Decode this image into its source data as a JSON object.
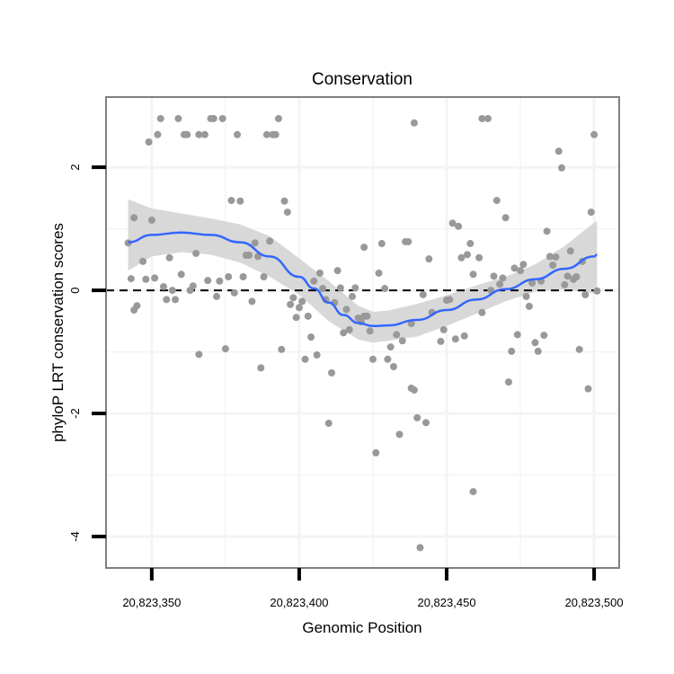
{
  "chart_data": {
    "type": "scatter",
    "title": "Conservation",
    "xlabel": "Genomic Position",
    "ylabel": "phyloP LRT conservation scores",
    "xlim": [
      20823334.5,
      20823508.5
    ],
    "ylim": [
      -4.51,
      3.14
    ],
    "xticks": [
      20823350,
      20823400,
      20823450,
      20823500
    ],
    "xtick_labels": [
      "20,823,350",
      "20,823,400",
      "20,823,450",
      "20,823,500"
    ],
    "yticks": [
      2,
      0,
      -2,
      -4
    ],
    "ytick_labels": [
      "2",
      "0",
      "-2",
      "-4"
    ],
    "grid": true,
    "reference_line": {
      "y": 0,
      "style": "dashed"
    },
    "colors": {
      "points": "#999999",
      "smooth": "#3366ff",
      "band": "#d6d6d6",
      "panel_border": "#808080",
      "grid": "#f4f4f4"
    },
    "points": [
      [
        20823353,
        2.79
      ],
      [
        20823359,
        2.79
      ],
      [
        20823370,
        2.79
      ],
      [
        20823371,
        2.79
      ],
      [
        20823374,
        2.79
      ],
      [
        20823393,
        2.79
      ],
      [
        20823349,
        2.41
      ],
      [
        20823352,
        2.53
      ],
      [
        20823361,
        2.53
      ],
      [
        20823362,
        2.53
      ],
      [
        20823366,
        2.53
      ],
      [
        20823368,
        2.53
      ],
      [
        20823379,
        2.53
      ],
      [
        20823389,
        2.53
      ],
      [
        20823391,
        2.53
      ],
      [
        20823392,
        2.53
      ],
      [
        20823377,
        1.46
      ],
      [
        20823380,
        1.45
      ],
      [
        20823395,
        1.45
      ],
      [
        20823396,
        1.27
      ],
      [
        20823344,
        1.18
      ],
      [
        20823350,
        1.14
      ],
      [
        20823342,
        0.77
      ],
      [
        20823385,
        0.77
      ],
      [
        20823390,
        0.8
      ],
      [
        20823422,
        0.7
      ],
      [
        20823347,
        0.47
      ],
      [
        20823356,
        0.53
      ],
      [
        20823365,
        0.6
      ],
      [
        20823382,
        0.57
      ],
      [
        20823383,
        0.57
      ],
      [
        20823386,
        0.55
      ],
      [
        20823343,
        0.19
      ],
      [
        20823348,
        0.18
      ],
      [
        20823351,
        0.2
      ],
      [
        20823360,
        0.26
      ],
      [
        20823369,
        0.16
      ],
      [
        20823373,
        0.15
      ],
      [
        20823376,
        0.22
      ],
      [
        20823381,
        0.22
      ],
      [
        20823388,
        0.22
      ],
      [
        20823407,
        0.28
      ],
      [
        20823413,
        0.32
      ],
      [
        20823405,
        0.15
      ],
      [
        20823408,
        0.03
      ],
      [
        20823414,
        0.04
      ],
      [
        20823419,
        0.04
      ],
      [
        20823354,
        0.06
      ],
      [
        20823357,
        0.0
      ],
      [
        20823364,
        0.07
      ],
      [
        20823363,
        0.0
      ],
      [
        20823355,
        -0.15
      ],
      [
        20823358,
        -0.15
      ],
      [
        20823345,
        -0.25
      ],
      [
        20823344,
        -0.32
      ],
      [
        20823372,
        -0.1
      ],
      [
        20823378,
        -0.04
      ],
      [
        20823384,
        -0.18
      ],
      [
        20823398,
        -0.12
      ],
      [
        20823397,
        -0.23
      ],
      [
        20823401,
        -0.18
      ],
      [
        20823400,
        -0.28
      ],
      [
        20823409,
        -0.15
      ],
      [
        20823412,
        -0.2
      ],
      [
        20823418,
        -0.1
      ],
      [
        20823416,
        -0.31
      ],
      [
        20823399,
        -0.44
      ],
      [
        20823403,
        -0.42
      ],
      [
        20823420,
        -0.45
      ],
      [
        20823422,
        -0.42
      ],
      [
        20823417,
        -0.64
      ],
      [
        20823415,
        -0.69
      ],
      [
        20823404,
        -0.76
      ],
      [
        20823366,
        -1.04
      ],
      [
        20823375,
        -0.95
      ],
      [
        20823394,
        -0.96
      ],
      [
        20823402,
        -1.12
      ],
      [
        20823406,
        -1.05
      ],
      [
        20823387,
        -1.26
      ],
      [
        20823411,
        -1.34
      ],
      [
        20823439,
        2.72
      ],
      [
        20823462,
        2.79
      ],
      [
        20823464,
        2.79
      ],
      [
        20823500,
        2.53
      ],
      [
        20823488,
        2.26
      ],
      [
        20823489,
        1.99
      ],
      [
        20823467,
        1.46
      ],
      [
        20823470,
        1.18
      ],
      [
        20823499,
        1.27
      ],
      [
        20823452,
        1.09
      ],
      [
        20823454,
        1.04
      ],
      [
        20823484,
        0.96
      ],
      [
        20823428,
        0.76
      ],
      [
        20823436,
        0.79
      ],
      [
        20823437,
        0.79
      ],
      [
        20823458,
        0.76
      ],
      [
        20823444,
        0.51
      ],
      [
        20823455,
        0.53
      ],
      [
        20823457,
        0.58
      ],
      [
        20823461,
        0.53
      ],
      [
        20823427,
        0.28
      ],
      [
        20823459,
        0.26
      ],
      [
        20823492,
        0.64
      ],
      [
        20823485,
        0.55
      ],
      [
        20823487,
        0.54
      ],
      [
        20823486,
        0.41
      ],
      [
        20823496,
        0.47
      ],
      [
        20823473,
        0.36
      ],
      [
        20823476,
        0.42
      ],
      [
        20823475,
        0.32
      ],
      [
        20823466,
        0.23
      ],
      [
        20823469,
        0.2
      ],
      [
        20823468,
        0.1
      ],
      [
        20823491,
        0.23
      ],
      [
        20823494,
        0.22
      ],
      [
        20823493,
        0.18
      ],
      [
        20823490,
        0.09
      ],
      [
        20823479,
        0.12
      ],
      [
        20823482,
        0.15
      ],
      [
        20823429,
        0.03
      ],
      [
        20823442,
        -0.07
      ],
      [
        20823465,
        0.0
      ],
      [
        20823477,
        -0.1
      ],
      [
        20823478,
        -0.26
      ],
      [
        20823497,
        -0.07
      ],
      [
        20823501,
        -0.01
      ],
      [
        20823450,
        -0.16
      ],
      [
        20823451,
        -0.15
      ],
      [
        20823423,
        -0.42
      ],
      [
        20823421,
        -0.51
      ],
      [
        20823424,
        -0.66
      ],
      [
        20823445,
        -0.36
      ],
      [
        20823438,
        -0.54
      ],
      [
        20823462,
        -0.36
      ],
      [
        20823449,
        -0.64
      ],
      [
        20823433,
        -0.72
      ],
      [
        20823435,
        -0.82
      ],
      [
        20823448,
        -0.83
      ],
      [
        20823453,
        -0.79
      ],
      [
        20823456,
        -0.74
      ],
      [
        20823474,
        -0.72
      ],
      [
        20823483,
        -0.73
      ],
      [
        20823480,
        -0.85
      ],
      [
        20823431,
        -0.92
      ],
      [
        20823425,
        -1.12
      ],
      [
        20823430,
        -1.12
      ],
      [
        20823432,
        -1.24
      ],
      [
        20823472,
        -0.99
      ],
      [
        20823481,
        -0.99
      ],
      [
        20823495,
        -0.96
      ],
      [
        20823471,
        -1.49
      ],
      [
        20823438,
        -1.59
      ],
      [
        20823439,
        -1.62
      ],
      [
        20823498,
        -1.6
      ],
      [
        20823410,
        -2.16
      ],
      [
        20823434,
        -2.34
      ],
      [
        20823440,
        -2.07
      ],
      [
        20823443,
        -2.15
      ],
      [
        20823426,
        -2.64
      ],
      [
        20823459,
        -3.27
      ],
      [
        20823441,
        -4.18
      ]
    ],
    "smooth": {
      "x": [
        20823342,
        20823350,
        20823360,
        20823370,
        20823380,
        20823390,
        20823400,
        20823405,
        20823410,
        20823415,
        20823420,
        20823425,
        20823430,
        20823440,
        20823450,
        20823460,
        20823470,
        20823480,
        20823490,
        20823500,
        20823501
      ],
      "y": [
        0.78,
        0.9,
        0.94,
        0.9,
        0.78,
        0.55,
        0.22,
        0.03,
        -0.2,
        -0.4,
        -0.53,
        -0.58,
        -0.57,
        -0.48,
        -0.32,
        -0.15,
        0.02,
        0.18,
        0.35,
        0.55,
        0.58
      ]
    },
    "confidence_band": {
      "x": [
        20823342,
        20823350,
        20823360,
        20823370,
        20823380,
        20823390,
        20823400,
        20823410,
        20823420,
        20823425,
        20823430,
        20823440,
        20823450,
        20823460,
        20823470,
        20823480,
        20823490,
        20823500,
        20823501
      ],
      "upper": [
        1.48,
        1.33,
        1.25,
        1.17,
        1.07,
        0.88,
        0.52,
        0.15,
        -0.25,
        -0.35,
        -0.33,
        -0.22,
        -0.08,
        0.08,
        0.22,
        0.42,
        0.72,
        1.1,
        1.12
      ],
      "lower": [
        0.32,
        0.55,
        0.62,
        0.58,
        0.45,
        0.22,
        -0.07,
        -0.5,
        -0.8,
        -0.85,
        -0.82,
        -0.75,
        -0.58,
        -0.38,
        -0.18,
        -0.02,
        0.02,
        -0.05,
        -0.03
      ]
    }
  }
}
